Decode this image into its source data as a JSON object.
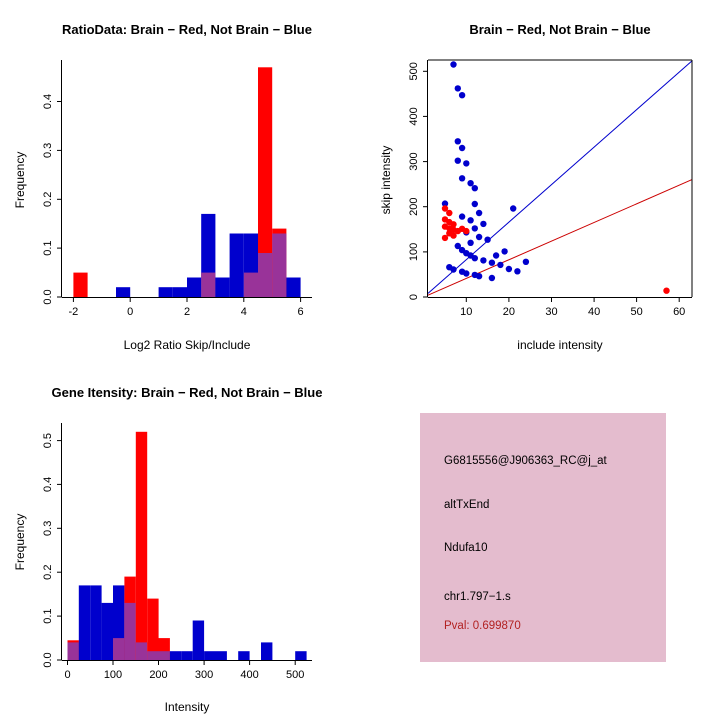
{
  "window": {
    "background": "#FFFFFF"
  },
  "colors": {
    "red": "#FF0000",
    "blue": "#0000CD",
    "overlap": "#993399",
    "axis": "#000000",
    "info_box_bg": "#E4BCCE",
    "pval_text": "#B22222",
    "scatter_line_blue": "#0000CD",
    "scatter_line_red": "#CC0000"
  },
  "panels": {
    "ratio_hist": {
      "title": "RatioData: Brain − Red, Not Brain − Blue",
      "xlabel": "Log2 Ratio Skip/Include",
      "ylabel": "Frequency"
    },
    "scatter": {
      "title": "Brain − Red, Not Brain − Blue",
      "xlabel": "include intensity",
      "ylabel": "skip intensity"
    },
    "gene_hist": {
      "title": "Gene Itensity: Brain − Red, Not Brain − Blue",
      "xlabel": "Intensity",
      "ylabel": "Frequency"
    },
    "info_box": {
      "probe_id": "G6815556@J906363_RC@j_at",
      "event_type": "altTxEnd",
      "gene": "Ndufa10",
      "location": "chr1.797−1.s",
      "pval": "Pval: 0.699870"
    }
  },
  "chart_data": [
    {
      "id": "ratio_hist",
      "type": "bar",
      "title": "RatioData: Brain − Red, Not Brain − Blue",
      "xlabel": "Log2 Ratio Skip/Include",
      "ylabel": "Frequency",
      "bin_start": -2,
      "bin_width": 0.5,
      "series": [
        {
          "name": "Not Brain",
          "color": "blue",
          "values": [
            0,
            0,
            0,
            0.02,
            0,
            0,
            0.02,
            0.02,
            0.04,
            0.17,
            0.04,
            0.13,
            0.13,
            0.09,
            0.13,
            0.04
          ]
        },
        {
          "name": "Brain",
          "color": "red",
          "values": [
            0.05,
            0,
            0,
            0,
            0,
            0,
            0,
            0,
            0,
            0.05,
            0,
            0,
            0.05,
            0.47,
            0.14,
            0
          ]
        }
      ],
      "xlim": [
        -2.4,
        6.4
      ],
      "ylim": [
        0,
        0.485
      ],
      "xtick_values": [
        -2,
        0,
        2,
        4,
        6
      ],
      "xtick_labels": [
        "-2",
        "0",
        "2",
        "4",
        "6"
      ],
      "ytick_values": [
        0,
        0.1,
        0.2,
        0.3,
        0.4
      ],
      "ytick_labels": [
        "0.0",
        "0.1",
        "0.2",
        "0.3",
        "0.4"
      ],
      "grid": false,
      "legend": "none"
    },
    {
      "id": "scatter",
      "type": "scatter",
      "title": "Brain − Red, Not Brain − Blue",
      "xlabel": "include intensity",
      "ylabel": "skip intensity",
      "xlim": [
        1,
        63
      ],
      "ylim": [
        0,
        525
      ],
      "xtick_values": [
        10,
        20,
        30,
        40,
        50,
        60
      ],
      "xtick_labels": [
        "10",
        "20",
        "30",
        "40",
        "50",
        "60"
      ],
      "ytick_values": [
        0,
        100,
        200,
        300,
        400,
        500
      ],
      "ytick_labels": [
        "0",
        "100",
        "200",
        "300",
        "400",
        "500"
      ],
      "series": [
        {
          "name": "Not Brain",
          "color": "blue",
          "points": [
            [
              7,
              515
            ],
            [
              8,
              462
            ],
            [
              9,
              447
            ],
            [
              8,
              345
            ],
            [
              9,
              330
            ],
            [
              8,
              302
            ],
            [
              10,
              296
            ],
            [
              9,
              263
            ],
            [
              11,
              252
            ],
            [
              12,
              241
            ],
            [
              5,
              207
            ],
            [
              12,
              206
            ],
            [
              21,
              196
            ],
            [
              13,
              186
            ],
            [
              9,
              178
            ],
            [
              11,
              170
            ],
            [
              14,
              162
            ],
            [
              12,
              152
            ],
            [
              10,
              143
            ],
            [
              13,
              133
            ],
            [
              15,
              127
            ],
            [
              11,
              120
            ],
            [
              8,
              113
            ],
            [
              9,
              104
            ],
            [
              19,
              101
            ],
            [
              10,
              97
            ],
            [
              11,
              92
            ],
            [
              17,
              92
            ],
            [
              12,
              86
            ],
            [
              14,
              81
            ],
            [
              24,
              78
            ],
            [
              16,
              76
            ],
            [
              18,
              71
            ],
            [
              6,
              66
            ],
            [
              20,
              62
            ],
            [
              7,
              61
            ],
            [
              22,
              57
            ],
            [
              9,
              56
            ],
            [
              10,
              52
            ],
            [
              12,
              49
            ],
            [
              13,
              46
            ],
            [
              16,
              42
            ]
          ]
        },
        {
          "name": "Brain",
          "color": "red",
          "points": [
            [
              5,
              196
            ],
            [
              6,
              186
            ],
            [
              5,
              172
            ],
            [
              6,
              166
            ],
            [
              7,
              161
            ],
            [
              5,
              156
            ],
            [
              6,
              152
            ],
            [
              7,
              149
            ],
            [
              9,
              151
            ],
            [
              8,
              146
            ],
            [
              10,
              146
            ],
            [
              6,
              141
            ],
            [
              7,
              136
            ],
            [
              5,
              131
            ],
            [
              57,
              14
            ]
          ]
        }
      ],
      "lines": [
        {
          "color": "blue",
          "x": [
            1,
            63
          ],
          "y": [
            8,
            523
          ]
        },
        {
          "color": "red",
          "x": [
            1,
            63
          ],
          "y": [
            4,
            260
          ]
        }
      ],
      "grid": false,
      "legend": "none"
    },
    {
      "id": "gene_hist",
      "type": "bar",
      "title": "Gene Itensity: Brain − Red, Not Brain − Blue",
      "xlabel": "Intensity",
      "ylabel": "Frequency",
      "bin_start": 0,
      "bin_width": 25,
      "series": [
        {
          "name": "Not Brain",
          "color": "blue",
          "values": [
            0.04,
            0.17,
            0.17,
            0.13,
            0.17,
            0.13,
            0.04,
            0.02,
            0.02,
            0.02,
            0.02,
            0.09,
            0.02,
            0.02,
            0,
            0.02,
            0,
            0.04,
            0,
            0,
            0.02
          ]
        },
        {
          "name": "Brain",
          "color": "red",
          "values": [
            0.045,
            0,
            0,
            0,
            0.05,
            0.19,
            0.52,
            0.14,
            0.05,
            0,
            0,
            0,
            0,
            0,
            0,
            0,
            0,
            0,
            0,
            0,
            0
          ]
        }
      ],
      "xlim": [
        -12,
        537
      ],
      "ylim": [
        0,
        0.54
      ],
      "xtick_values": [
        0,
        100,
        200,
        300,
        400,
        500
      ],
      "xtick_labels": [
        "0",
        "100",
        "200",
        "300",
        "400",
        "500"
      ],
      "ytick_values": [
        0,
        0.1,
        0.2,
        0.3,
        0.4,
        0.5
      ],
      "ytick_labels": [
        "0.0",
        "0.1",
        "0.2",
        "0.3",
        "0.4",
        "0.5"
      ],
      "grid": false,
      "legend": "none"
    }
  ]
}
